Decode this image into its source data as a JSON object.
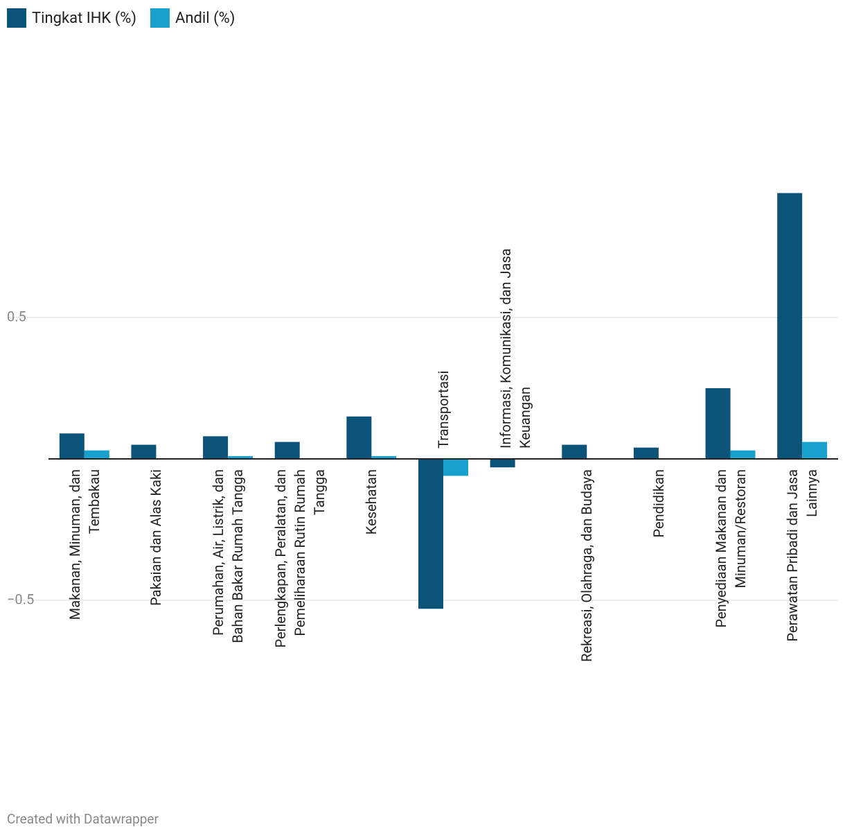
{
  "chart_data": {
    "type": "bar",
    "categories": [
      "Makanan, Minuman, dan Tembakau",
      "Pakaian dan Alas Kaki",
      "Perumahan, Air, Listrik, dan Bahan Bakar Rumah Tangga",
      "Perlengkapan, Peralatan, dan Pemeliharaan Rutin Rumah Tangga",
      "Kesehatan",
      "Transportasi",
      "Informasi, Komunikasi, dan Jasa Keuangan",
      "Rekreasi, Olahraga, dan Budaya",
      "Pendidikan",
      "Penyediaan Makanan dan Minuman/Restoran",
      "Perawatan Pribadi dan Jasa Lainnya"
    ],
    "series": [
      {
        "name": "Tingkat IHK (%)",
        "color": "#0b5378",
        "values": [
          0.09,
          0.05,
          0.08,
          0.06,
          0.15,
          -0.53,
          -0.03,
          0.05,
          0.04,
          0.25,
          0.94
        ]
      },
      {
        "name": "Andil (%)",
        "color": "#18a1cd",
        "values": [
          0.03,
          0,
          0.01,
          0,
          0.01,
          -0.06,
          0,
          0,
          0,
          0.03,
          0.06
        ]
      }
    ],
    "ylim": [
      -1.2,
      1.5
    ],
    "yticks": [
      {
        "value": -0.5,
        "label": "−0.5"
      },
      0.5
    ],
    "grid": true,
    "legend": "top-left",
    "footer": "Created with Datawrapper"
  }
}
